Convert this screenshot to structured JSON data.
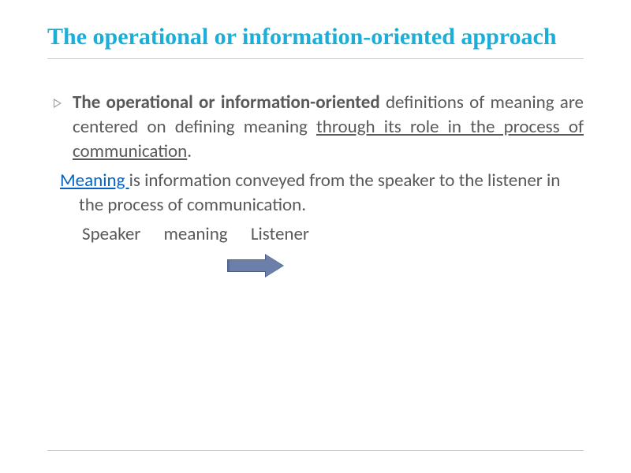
{
  "title": "The operational or information-oriented approach",
  "para1_bold": "The operational or information-oriented",
  "para1_mid": " definitions of meaning are centered on defining meaning ",
  "para1_underline": "through its role in the process of communication",
  "para1_end": ".",
  "para2_link": "Meaning ",
  "para2_rest": "is information conveyed from the speaker to the listener in the process of communication.",
  "para3_speaker": "Speaker",
  "para3_meaning": "meaning",
  "para3_listener": "Listener",
  "colors": {
    "title": "#1aaed8",
    "text": "#595959",
    "link": "#0563c1",
    "arrow_fill": "#6b7fa8",
    "arrow_border": "#4a5d82",
    "rule": "#cccccc"
  }
}
